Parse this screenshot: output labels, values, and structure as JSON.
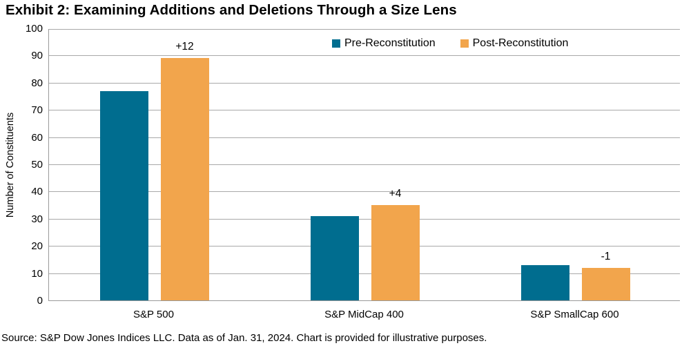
{
  "title": "Exhibit 2: Examining Additions and Deletions Through a Size Lens",
  "source": "Source: S&P Dow Jones Indices LLC. Data as of Jan. 31, 2024. Chart is provided for illustrative purposes.",
  "chart_data": {
    "type": "bar",
    "title": "Exhibit 2: Examining Additions and Deletions Through a Size Lens",
    "categories": [
      "S&P 500",
      "S&P MidCap 400",
      "S&P SmallCap 600"
    ],
    "series": [
      {
        "name": "Pre-Reconstitution",
        "color": "#006d8f",
        "values": [
          77,
          31,
          13
        ]
      },
      {
        "name": "Post-Reconstitution",
        "color": "#f2a54c",
        "values": [
          89,
          35,
          12
        ]
      }
    ],
    "bar_labels": {
      "on_series": "Post-Reconstitution",
      "values": [
        "+12",
        "+4",
        "-1"
      ]
    },
    "xlabel": "",
    "ylabel": "Number of Constituents",
    "ylim": [
      0,
      100
    ],
    "ytick_step": 10,
    "grid": true,
    "legend_position": "top-center-right-inside"
  },
  "colors": {
    "pre_series": "#006d8f",
    "post_series": "#f2a54c",
    "gridline": "#a8a8a8",
    "axis": "#999999",
    "text": "#000000"
  }
}
